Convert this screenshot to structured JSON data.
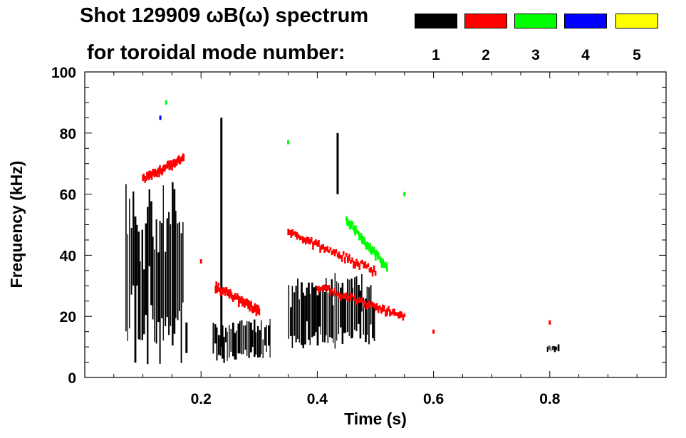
{
  "title": {
    "line1": "Shot 129909 ωB(ω) spectrum",
    "line2": "for toroidal mode number:"
  },
  "legend": [
    {
      "label": "1",
      "color": "#000000"
    },
    {
      "label": "2",
      "color": "#ff0000"
    },
    {
      "label": "3",
      "color": "#00ff00"
    },
    {
      "label": "4",
      "color": "#0000ff"
    },
    {
      "label": "5",
      "color": "#ffff00"
    }
  ],
  "chart_data": {
    "type": "heatmap",
    "title": "Shot 129909 ωB(ω) spectrum",
    "xlabel": "Time (s)",
    "ylabel": "Frequency (kHz)",
    "xlim": [
      0.0,
      1.0
    ],
    "ylim": [
      0,
      100
    ],
    "xticks": [
      0.2,
      0.4,
      0.6,
      0.8
    ],
    "xtick_labels": [
      "0.2",
      "0.4",
      "0.6",
      "0.8"
    ],
    "yticks": [
      0,
      20,
      40,
      60,
      80,
      100
    ],
    "ytick_labels": [
      "0",
      "20",
      "40",
      "60",
      "80",
      "100"
    ],
    "grid": false,
    "legend_position": "top-right",
    "series": [
      {
        "name": "1",
        "color": "#000000",
        "regions": [
          {
            "t": [
              0.07,
              0.17
            ],
            "f": [
              3,
              65
            ]
          },
          {
            "t": [
              0.22,
              0.32
            ],
            "f": [
              4,
              20
            ]
          },
          {
            "t": [
              0.35,
              0.5
            ],
            "f": [
              8,
              36
            ]
          },
          {
            "t": [
              0.795,
              0.815
            ],
            "f": [
              8,
              11
            ]
          }
        ],
        "streaks": [
          {
            "t": 0.235,
            "f": [
              10,
              85
            ]
          },
          {
            "t": 0.435,
            "f": [
              60,
              80
            ]
          },
          {
            "t": 0.175,
            "f": [
              8,
              18
            ]
          }
        ]
      },
      {
        "name": "2",
        "color": "#ff0000",
        "tracks": [
          {
            "t": [
              0.1,
              0.17
            ],
            "f": [
              65,
              72
            ]
          },
          {
            "t": [
              0.225,
              0.3
            ],
            "f": [
              30,
              22
            ]
          },
          {
            "t": [
              0.35,
              0.5
            ],
            "f": [
              48,
              35
            ]
          },
          {
            "t": [
              0.4,
              0.55
            ],
            "f": [
              30,
              20
            ]
          }
        ],
        "scatter": [
          {
            "t": 0.8,
            "f": 18
          },
          {
            "t": 0.2,
            "f": 38
          },
          {
            "t": 0.6,
            "f": 15
          }
        ]
      },
      {
        "name": "3",
        "color": "#00ff00",
        "tracks": [
          {
            "t": [
              0.45,
              0.52
            ],
            "f": [
              52,
              36
            ]
          }
        ],
        "scatter": [
          {
            "t": 0.14,
            "f": 90
          },
          {
            "t": 0.35,
            "f": 77
          },
          {
            "t": 0.55,
            "f": 60
          }
        ]
      },
      {
        "name": "4",
        "color": "#0000ff",
        "scatter": [
          {
            "t": 0.13,
            "f": 85
          }
        ]
      },
      {
        "name": "5",
        "color": "#ffff00",
        "scatter": []
      }
    ]
  }
}
